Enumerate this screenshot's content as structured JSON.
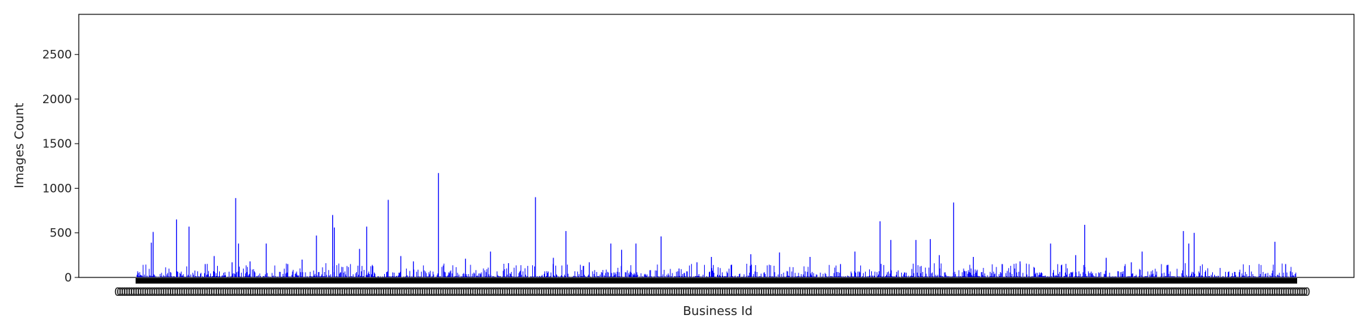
{
  "chart_data": {
    "type": "bar",
    "title": "",
    "xlabel": "Business Id",
    "ylabel": "Images Count",
    "ylim": [
      0,
      2950
    ],
    "yticks": [
      0,
      500,
      1000,
      1500,
      2000,
      2500
    ],
    "xlim_fraction": [
      0.05,
      0.95
    ],
    "bar_color": "#0000ff",
    "category_tick_labels": "dense, overlapping (illegible)",
    "grid": false,
    "legend": "none",
    "peaks": [
      {
        "x": 0.04,
        "value": 390
      },
      {
        "x": 0.045,
        "value": 510
      },
      {
        "x": 0.11,
        "value": 650
      },
      {
        "x": 0.145,
        "value": 570
      },
      {
        "x": 0.19,
        "value": 150
      },
      {
        "x": 0.215,
        "value": 240
      },
      {
        "x": 0.265,
        "value": 170
      },
      {
        "x": 0.275,
        "value": 890
      },
      {
        "x": 0.283,
        "value": 380
      },
      {
        "x": 0.315,
        "value": 180
      },
      {
        "x": 0.36,
        "value": 380
      },
      {
        "x": 0.42,
        "value": 150
      },
      {
        "x": 0.46,
        "value": 200
      },
      {
        "x": 0.5,
        "value": 470
      },
      {
        "x": 0.545,
        "value": 700
      },
      {
        "x": 0.55,
        "value": 560
      },
      {
        "x": 0.62,
        "value": 320
      },
      {
        "x": 0.64,
        "value": 570
      },
      {
        "x": 0.7,
        "value": 870
      },
      {
        "x": 0.735,
        "value": 240
      },
      {
        "x": 0.77,
        "value": 180
      },
      {
        "x": 0.84,
        "value": 1170
      },
      {
        "x": 0.915,
        "value": 210
      },
      {
        "x": 0.985,
        "value": 290
      },
      {
        "x": 1.035,
        "value": 160
      },
      {
        "x": 1.11,
        "value": 900
      },
      {
        "x": 1.16,
        "value": 220
      },
      {
        "x": 1.195,
        "value": 520
      },
      {
        "x": 1.26,
        "value": 170
      },
      {
        "x": 1.32,
        "value": 380
      },
      {
        "x": 1.35,
        "value": 310
      },
      {
        "x": 1.39,
        "value": 380
      },
      {
        "x": 1.46,
        "value": 460
      },
      {
        "x": 1.51,
        "value": 100
      },
      {
        "x": 1.56,
        "value": 170
      },
      {
        "x": 1.6,
        "value": 230
      },
      {
        "x": 1.655,
        "value": 140
      },
      {
        "x": 1.71,
        "value": 260
      },
      {
        "x": 1.79,
        "value": 280
      },
      {
        "x": 1.875,
        "value": 230
      },
      {
        "x": 1.96,
        "value": 150
      },
      {
        "x": 2.0,
        "value": 290
      },
      {
        "x": 2.07,
        "value": 630
      },
      {
        "x": 2.1,
        "value": 420
      },
      {
        "x": 2.17,
        "value": 420
      },
      {
        "x": 2.21,
        "value": 430
      },
      {
        "x": 2.235,
        "value": 250
      },
      {
        "x": 2.275,
        "value": 840
      },
      {
        "x": 2.33,
        "value": 230
      },
      {
        "x": 2.41,
        "value": 150
      },
      {
        "x": 2.46,
        "value": 180
      },
      {
        "x": 2.545,
        "value": 380
      },
      {
        "x": 2.615,
        "value": 250
      },
      {
        "x": 2.64,
        "value": 590
      },
      {
        "x": 2.7,
        "value": 220
      },
      {
        "x": 2.77,
        "value": 170
      },
      {
        "x": 2.8,
        "value": 290
      },
      {
        "x": 2.87,
        "value": 140
      },
      {
        "x": 2.915,
        "value": 520
      },
      {
        "x": 2.93,
        "value": 380
      },
      {
        "x": 2.945,
        "value": 500
      },
      {
        "x": 3.04,
        "value": 60
      },
      {
        "x": 3.17,
        "value": 400
      },
      {
        "x": 3.2,
        "value": 150
      }
    ]
  }
}
